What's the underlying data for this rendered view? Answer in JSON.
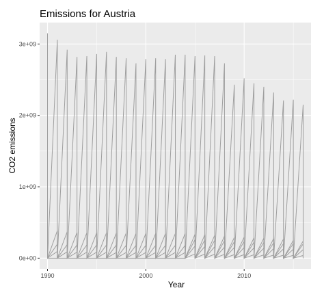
{
  "chart_data": {
    "type": "line",
    "title": "Emissions for Austria",
    "xlabel": "Year",
    "ylabel": "CO2 emissions",
    "x_ticks": [
      1990,
      2000,
      2010
    ],
    "y_ticks": [
      0,
      1000000000,
      2000000000,
      3000000000
    ],
    "y_tick_labels": [
      "0e+00",
      "1e+09",
      "2e+09",
      "3e+09"
    ],
    "xlim": [
      1989.2,
      2016.8
    ],
    "ylim": [
      -150000000,
      3300000000
    ],
    "grid": true,
    "series_color": "#9e9e9e",
    "panel_background": "#ebebeb",
    "grid_color": "#ffffff",
    "note": "",
    "x": [
      1990,
      1991,
      1992,
      1993,
      1994,
      1995,
      1996,
      1997,
      1998,
      1999,
      2000,
      2001,
      2002,
      2003,
      2004,
      2005,
      2006,
      2007,
      2008,
      2009,
      2010,
      2011,
      2012,
      2013,
      2014,
      2015,
      2016
    ],
    "series": [
      {
        "values": [
          3150000000,
          3060000000,
          2920000000,
          2820000000,
          2830000000,
          2860000000,
          2890000000,
          2820000000,
          2800000000,
          2730000000,
          2790000000,
          2800000000,
          2790000000,
          2850000000,
          2850000000,
          2830000000,
          2840000000,
          2830000000,
          2730000000,
          2430000000,
          2520000000,
          2450000000,
          2400000000,
          2320000000,
          2210000000,
          2220000000,
          2150000000
        ]
      },
      {
        "values": [
          390000000,
          385000000,
          370000000,
          360000000,
          355000000,
          355000000,
          355000000,
          352000000,
          350000000,
          345000000,
          345000000,
          345000000,
          345000000,
          345000000,
          345000000,
          335000000,
          330000000,
          320000000,
          310000000,
          290000000,
          295000000,
          285000000,
          280000000,
          275000000,
          270000000,
          250000000,
          240000000
        ]
      },
      {
        "values": [
          200000000,
          195000000,
          190000000,
          185000000,
          185000000,
          185000000,
          185000000,
          185000000,
          180000000,
          180000000,
          180000000,
          180000000,
          180000000,
          180000000,
          180000000,
          260000000,
          255000000,
          250000000,
          245000000,
          230000000,
          235000000,
          225000000,
          220000000,
          215000000,
          205000000,
          205000000,
          200000000
        ]
      },
      {
        "values": [
          100000000,
          95000000,
          90000000,
          85000000,
          85000000,
          85000000,
          85000000,
          80000000,
          80000000,
          80000000,
          80000000,
          80000000,
          80000000,
          80000000,
          80000000,
          170000000,
          165000000,
          160000000,
          155000000,
          150000000,
          150000000,
          145000000,
          140000000,
          135000000,
          130000000,
          125000000,
          120000000
        ]
      },
      {
        "values": [
          0,
          0,
          0,
          0,
          0,
          0,
          0,
          0,
          0,
          0,
          0,
          0,
          0,
          0,
          0,
          60000000,
          58000000,
          56000000,
          54000000,
          50000000,
          50000000,
          48000000,
          46000000,
          44000000,
          42000000,
          40000000,
          38000000
        ]
      }
    ]
  }
}
